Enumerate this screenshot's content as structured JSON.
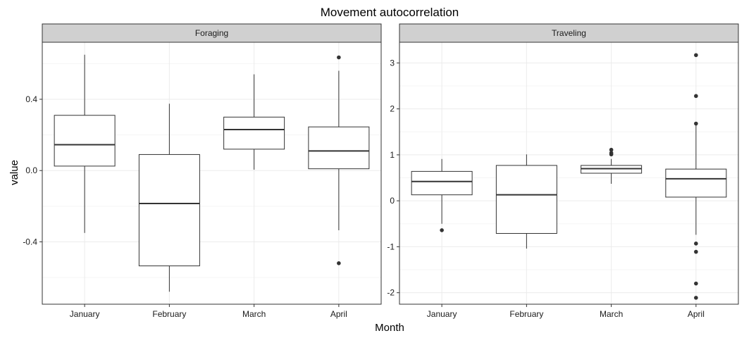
{
  "chart_data": {
    "type": "boxplot",
    "title": "Movement autocorrelation",
    "xlabel": "Month",
    "ylabel": "value",
    "categories": [
      "January",
      "February",
      "March",
      "April"
    ],
    "panels": [
      {
        "name": "Foraging",
        "ylim": [
          -0.75,
          0.72
        ],
        "yticks": [
          -0.4,
          0.0,
          0.4
        ],
        "ytick_labels": [
          "-0.4",
          "0.0",
          "0.4"
        ],
        "boxes": [
          {
            "category": "January",
            "min": -0.35,
            "q1": 0.025,
            "median": 0.145,
            "q3": 0.31,
            "max": 0.65,
            "outliers": []
          },
          {
            "category": "February",
            "min": -0.68,
            "q1": -0.535,
            "median": -0.185,
            "q3": 0.09,
            "max": 0.375,
            "outliers": []
          },
          {
            "category": "March",
            "min": 0.005,
            "q1": 0.12,
            "median": 0.23,
            "q3": 0.3,
            "max": 0.54,
            "outliers": []
          },
          {
            "category": "April",
            "min": -0.335,
            "q1": 0.01,
            "median": 0.11,
            "q3": 0.245,
            "max": 0.56,
            "outliers": [
              0.635,
              -0.52
            ]
          }
        ]
      },
      {
        "name": "Traveling",
        "ylim": [
          -2.25,
          3.45
        ],
        "yticks": [
          -2,
          -1,
          0,
          1,
          2,
          3
        ],
        "ytick_labels": [
          "-2",
          "-1",
          "0",
          "1",
          "2",
          "3"
        ],
        "boxes": [
          {
            "category": "January",
            "min": -0.5,
            "q1": 0.13,
            "median": 0.42,
            "q3": 0.64,
            "max": 0.91,
            "outliers": [
              -0.64
            ]
          },
          {
            "category": "February",
            "min": -1.04,
            "q1": -0.71,
            "median": 0.13,
            "q3": 0.77,
            "max": 1.01,
            "outliers": []
          },
          {
            "category": "March",
            "min": 0.37,
            "q1": 0.6,
            "median": 0.7,
            "q3": 0.77,
            "max": 0.91,
            "outliers": [
              1.11,
              1.04,
              1.01
            ]
          },
          {
            "category": "April",
            "min": -0.74,
            "q1": 0.08,
            "median": 0.48,
            "q3": 0.69,
            "max": 1.65,
            "outliers": [
              3.17,
              2.28,
              1.68,
              -0.93,
              -1.11,
              -1.8,
              -2.11
            ]
          }
        ]
      }
    ]
  }
}
